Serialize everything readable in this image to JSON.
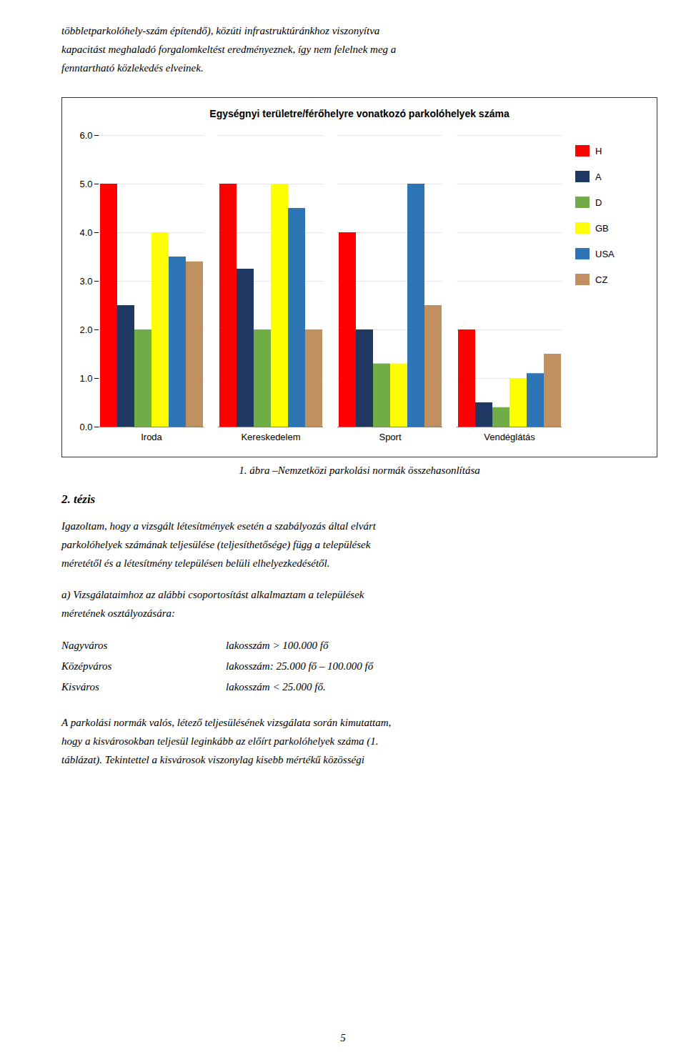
{
  "chart_data": {
    "type": "bar",
    "title": "Egységnyi területre/férőhelyre vonatkozó parkolóhelyek száma",
    "categories": [
      "Iroda",
      "Kereskedelem",
      "Sport",
      "Vendéglátás"
    ],
    "series": [
      {
        "name": "H",
        "color": "#FF0000",
        "values": [
          5,
          5,
          4,
          2
        ]
      },
      {
        "name": "A",
        "color": "#1F3864",
        "values": [
          2.5,
          3.25,
          2,
          0.5
        ]
      },
      {
        "name": "D",
        "color": "#70AD47",
        "values": [
          2,
          2,
          1.3,
          0.4
        ]
      },
      {
        "name": "GB",
        "color": "#FFFF00",
        "values": [
          4,
          5,
          1.3,
          1
        ]
      },
      {
        "name": "USA",
        "color": "#2E75B6",
        "values": [
          3.5,
          4.5,
          5,
          1.1
        ]
      },
      {
        "name": "CZ",
        "color": "#C09060",
        "values": [
          3.4,
          2,
          2.5,
          1.5
        ]
      }
    ],
    "ylim": [
      0,
      6
    ],
    "yticks": [
      0,
      1,
      2,
      3,
      4,
      5,
      6
    ],
    "grid": true,
    "legend": "right",
    "caption": "1. ábra –Nemzetközi parkolási normák összehasonlítása"
  },
  "page_text": {
    "before": [
      "többletparkolóhely-szám építendő), közúti infrastruktúránkhoz viszonyítva",
      "kapacitást meghaladó forgalomkeltést eredményeznek, így nem felelnek meg a",
      "fenntartható közlekedés elveinek."
    ],
    "heading": "2. tézis",
    "paragraph1": [
      "Igazoltam, hogy a vizsgált létesítmények esetén a szabályozás által elvárt",
      "parkolóhelyek számának teljesülése (teljesíthetősége) függ a települések",
      "méretétől és a létesítmény településen belüli elhelyezkedésétől."
    ],
    "paragraph2": [
      "a) Vizsgálataimhoz az alábbi csoportosítást alkalmaztam a települések",
      "méretének osztályozására:"
    ],
    "table": [
      [
        "Nagyváros",
        "lakosszám > 100.000 fő"
      ],
      [
        "Középváros",
        "lakosszám: 25.000 fő – 100.000 fő"
      ],
      [
        "Kisváros",
        "lakosszám < 25.000 fő."
      ]
    ],
    "paragraph3": [
      "A parkolási normák valós, létező teljesülésének vizsgálata során kimutattam,",
      "hogy a kisvárosokban teljesül leginkább az előírt parkolóhelyek száma (1.",
      "táblázat). Tekintettel a kisvárosok viszonylag kisebb mértékű közösségi"
    ],
    "page_number": "5"
  }
}
